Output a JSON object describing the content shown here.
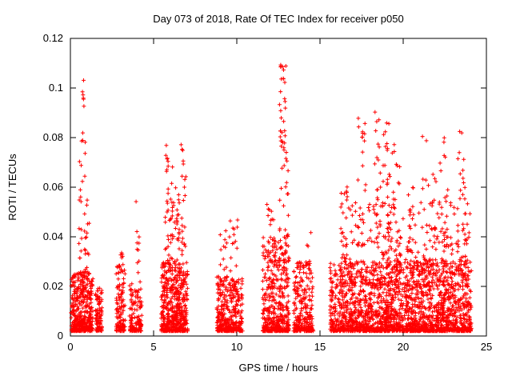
{
  "chart_data": {
    "type": "scatter",
    "title": "Day 073 of 2018, Rate Of TEC Index for receiver p050",
    "xlabel": "GPS time / hours",
    "ylabel": "ROTI / TECUs",
    "xlim": [
      0,
      25
    ],
    "ylim": [
      0,
      0.12
    ],
    "xticks": [
      {
        "v": 0,
        "label": "0"
      },
      {
        "v": 5,
        "label": "5"
      },
      {
        "v": 10,
        "label": "10"
      },
      {
        "v": 15,
        "label": "15"
      },
      {
        "v": 20,
        "label": "20"
      },
      {
        "v": 25,
        "label": "25"
      }
    ],
    "yticks": [
      {
        "v": 0,
        "label": "0"
      },
      {
        "v": 0.02,
        "label": "0.02"
      },
      {
        "v": 0.04,
        "label": "0.04"
      },
      {
        "v": 0.06,
        "label": "0.06"
      },
      {
        "v": 0.08,
        "label": "0.08"
      },
      {
        "v": 0.1,
        "label": "0.1"
      },
      {
        "v": 0.12,
        "label": "0.12"
      }
    ],
    "grid": false,
    "legend": "none",
    "marker": "plus",
    "marker_color": "#ff0000",
    "marker_size_px": 5,
    "seed": 73,
    "series_description": "Dense clusters of ROTI samples per satellite pass; baseline 0.002-0.03 TECU with vertical spike streaks reaching 0.11 near 0.8h and 12.8h, 0.08 near 6h, and many 0.05-0.09 spikes between 16h and 24h.",
    "clusters": [
      {
        "x0": 0.05,
        "x1": 1.35,
        "n": 450,
        "y0": 0.002,
        "y1": 0.026,
        "bias": 2.0
      },
      {
        "x0": 1.5,
        "x1": 1.9,
        "n": 100,
        "y0": 0.002,
        "y1": 0.02,
        "bias": 2.0
      },
      {
        "x0": 2.75,
        "x1": 3.3,
        "n": 130,
        "y0": 0.002,
        "y1": 0.03,
        "bias": 2.2
      },
      {
        "x0": 3.55,
        "x1": 4.3,
        "n": 140,
        "y0": 0.002,
        "y1": 0.022,
        "bias": 2.2
      },
      {
        "x0": 5.45,
        "x1": 7.05,
        "n": 550,
        "y0": 0.002,
        "y1": 0.03,
        "bias": 2.2
      },
      {
        "x0": 8.8,
        "x1": 10.35,
        "n": 380,
        "y0": 0.002,
        "y1": 0.024,
        "bias": 2.2
      },
      {
        "x0": 11.55,
        "x1": 13.15,
        "n": 450,
        "y0": 0.002,
        "y1": 0.04,
        "bias": 2.5
      },
      {
        "x0": 13.4,
        "x1": 14.6,
        "n": 280,
        "y0": 0.002,
        "y1": 0.03,
        "bias": 2.5
      },
      {
        "x0": 15.6,
        "x1": 24.1,
        "n": 2000,
        "y0": 0.002,
        "y1": 0.03,
        "bias": 2.3
      },
      {
        "x0": 16.2,
        "x1": 24.0,
        "n": 250,
        "y0": 0.02,
        "y1": 0.055,
        "bias": 2.0
      },
      {
        "x0": 0.5,
        "x1": 0.7,
        "n": 14,
        "y0": 0.03,
        "y1": 0.08,
        "bias": 1.2
      },
      {
        "x0": 0.7,
        "x1": 0.9,
        "n": 12,
        "y0": 0.06,
        "y1": 0.106,
        "bias": 1.1
      },
      {
        "x0": 0.85,
        "x1": 1.15,
        "n": 18,
        "y0": 0.025,
        "y1": 0.055,
        "bias": 1.3
      },
      {
        "x0": 2.9,
        "x1": 3.15,
        "n": 8,
        "y0": 0.025,
        "y1": 0.034,
        "bias": 1.2
      },
      {
        "x0": 3.9,
        "x1": 4.2,
        "n": 10,
        "y0": 0.025,
        "y1": 0.07,
        "bias": 1.5
      },
      {
        "x0": 5.7,
        "x1": 6.15,
        "n": 40,
        "y0": 0.03,
        "y1": 0.081,
        "bias": 1.4
      },
      {
        "x0": 6.2,
        "x1": 6.55,
        "n": 25,
        "y0": 0.03,
        "y1": 0.062,
        "bias": 1.4
      },
      {
        "x0": 6.65,
        "x1": 6.95,
        "n": 22,
        "y0": 0.03,
        "y1": 0.078,
        "bias": 1.3
      },
      {
        "x0": 9.0,
        "x1": 9.4,
        "n": 12,
        "y0": 0.022,
        "y1": 0.043,
        "bias": 1.3
      },
      {
        "x0": 9.55,
        "x1": 10.05,
        "n": 16,
        "y0": 0.022,
        "y1": 0.047,
        "bias": 1.3
      },
      {
        "x0": 11.8,
        "x1": 12.3,
        "n": 20,
        "y0": 0.03,
        "y1": 0.055,
        "bias": 1.4
      },
      {
        "x0": 12.55,
        "x1": 12.95,
        "n": 40,
        "y0": 0.04,
        "y1": 0.112,
        "bias": 1.1
      },
      {
        "x0": 12.95,
        "x1": 13.1,
        "n": 12,
        "y0": 0.03,
        "y1": 0.075,
        "bias": 1.2
      },
      {
        "x0": 14.2,
        "x1": 14.45,
        "n": 6,
        "y0": 0.025,
        "y1": 0.043,
        "bias": 1.2
      },
      {
        "x0": 16.25,
        "x1": 16.65,
        "n": 25,
        "y0": 0.03,
        "y1": 0.066,
        "bias": 1.3
      },
      {
        "x0": 17.25,
        "x1": 17.75,
        "n": 30,
        "y0": 0.035,
        "y1": 0.091,
        "bias": 1.3
      },
      {
        "x0": 18.25,
        "x1": 18.65,
        "n": 25,
        "y0": 0.035,
        "y1": 0.093,
        "bias": 1.3
      },
      {
        "x0": 18.75,
        "x1": 19.35,
        "n": 45,
        "y0": 0.03,
        "y1": 0.087,
        "bias": 1.3
      },
      {
        "x0": 19.4,
        "x1": 19.85,
        "n": 30,
        "y0": 0.03,
        "y1": 0.079,
        "bias": 1.3
      },
      {
        "x0": 20.15,
        "x1": 20.6,
        "n": 20,
        "y0": 0.025,
        "y1": 0.06,
        "bias": 1.3
      },
      {
        "x0": 21.1,
        "x1": 21.45,
        "n": 12,
        "y0": 0.03,
        "y1": 0.088,
        "bias": 1.5
      },
      {
        "x0": 21.5,
        "x1": 22.05,
        "n": 22,
        "y0": 0.028,
        "y1": 0.066,
        "bias": 1.3
      },
      {
        "x0": 22.15,
        "x1": 22.7,
        "n": 25,
        "y0": 0.03,
        "y1": 0.08,
        "bias": 1.3
      },
      {
        "x0": 23.25,
        "x1": 23.65,
        "n": 20,
        "y0": 0.03,
        "y1": 0.083,
        "bias": 1.4
      },
      {
        "x0": 23.7,
        "x1": 24.05,
        "n": 15,
        "y0": 0.025,
        "y1": 0.06,
        "bias": 1.4
      }
    ]
  }
}
